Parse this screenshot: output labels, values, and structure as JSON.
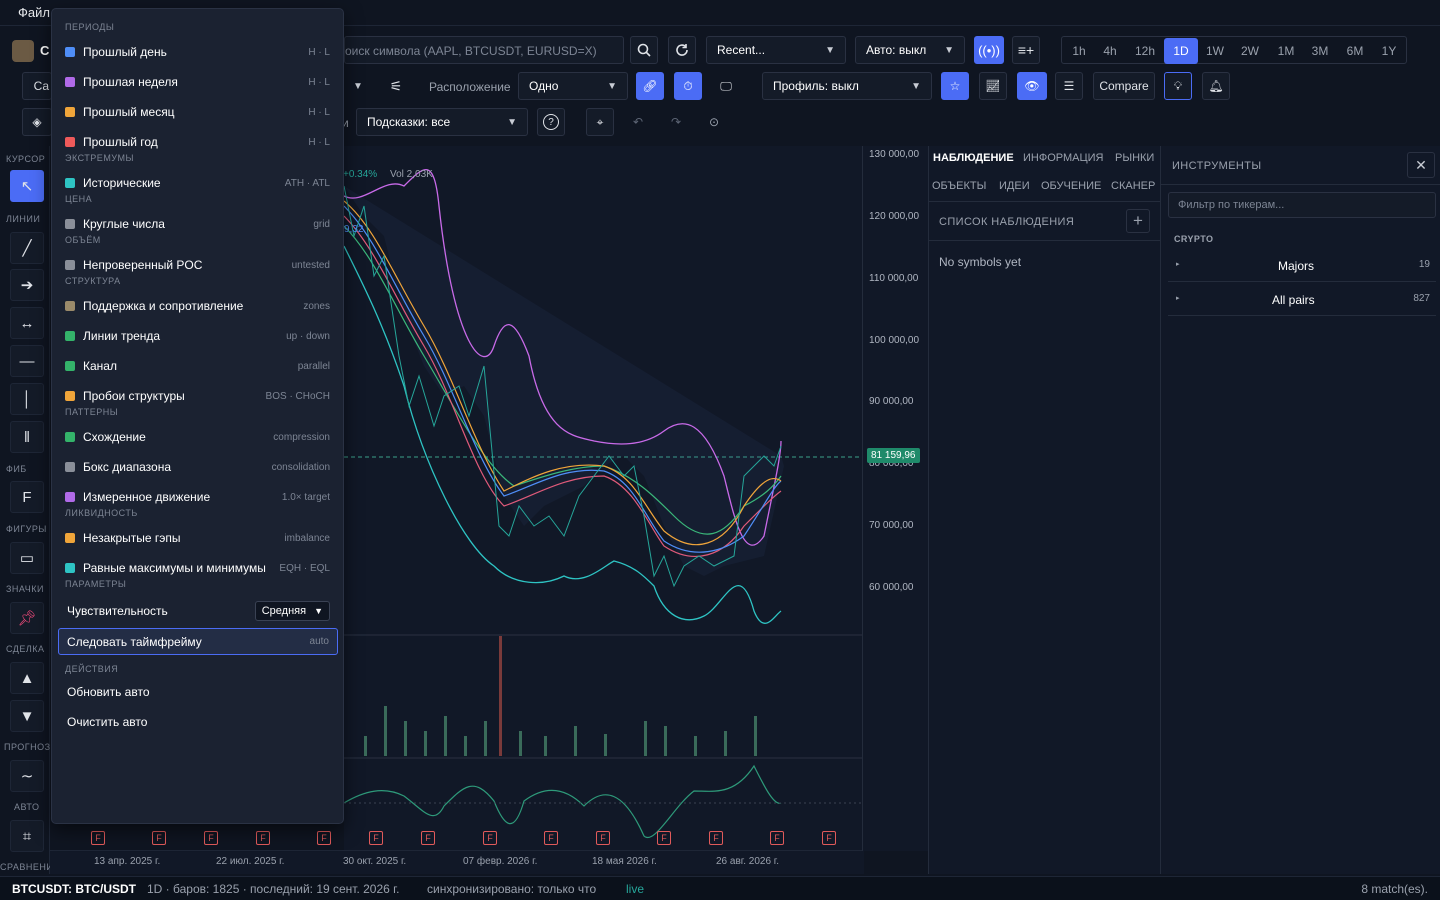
{
  "menubar": {
    "file": "Файл"
  },
  "header": {
    "logo_letter": "C",
    "search_placeholder": "оиск символа (AAPL, BTCUSDT, EURUSD=X)",
    "recent": "Recent...",
    "auto": "Авто: выкл",
    "timeframes": [
      "1h",
      "4h",
      "12h",
      "1D",
      "1W",
      "2W",
      "1M",
      "3M",
      "6M",
      "1Y"
    ],
    "active_tf": "1D"
  },
  "toolbar2": {
    "left_stub": "Ca",
    "layout_label": "Расположение",
    "layout_value": "Одно",
    "profile": "Профиль: выкл",
    "compare": "Compare"
  },
  "toolbar3": {
    "hints": "Подсказки: все",
    "stub": "и"
  },
  "leftbar": {
    "sections": [
      "КУРСОР",
      "ЛИНИИ",
      "ФИБ",
      "ФИГУРЫ",
      "ЗНАЧКИ",
      "СДЕЛКА",
      "ПРОГНОЗ",
      "АВТО",
      "СРАВНЕНИЕ"
    ],
    "fib_glyph": "F"
  },
  "chart": {
    "legend_change": "+0.34%",
    "legend_vol": "Vol 2,03K",
    "legend_stub": "9,32",
    "last_price": "81 159,96",
    "price_labels": [
      "130 000,00",
      "120 000,00",
      "110 000,00",
      "100 000,00",
      "90 000,00",
      "80 000,00",
      "70 000,00",
      "60 000,00"
    ],
    "dates": [
      "13 апр. 2025 г.",
      "22 июл. 2025 г.",
      "30 окт. 2025 г.",
      "07 февр. 2026 г.",
      "18 мая 2026 г.",
      "26 авг. 2026 г."
    ],
    "flag_glyph": "F"
  },
  "watch": {
    "tabs_row1": [
      "НАБЛЮДЕНИЕ",
      "ИНФОРМАЦИЯ",
      "РЫНКИ"
    ],
    "tabs_row2": [
      "ОБЪЕКТЫ",
      "ИДЕИ",
      "ОБУЧЕНИЕ",
      "СКАНЕР"
    ],
    "list_title": "СПИСОК НАБЛЮДЕНИЯ",
    "empty": "No symbols yet"
  },
  "instruments": {
    "title": "ИНСТРУМЕНТЫ",
    "filter_placeholder": "Фильтр по тикерам...",
    "group": "CRYPTO",
    "rows": [
      {
        "name": "Majors",
        "count": "19"
      },
      {
        "name": "All pairs",
        "count": "827"
      }
    ]
  },
  "status": {
    "symbol": "BTCUSDT: BTC/USDT",
    "info": "1D · баров: 1825 · последний: 19 сент. 2026 г.",
    "sync": "синхронизировано: только что",
    "live": "live",
    "matches": "8 match(es)."
  },
  "dropdown": {
    "h_periods": "ПЕРИОДЫ",
    "periods": [
      {
        "label": "Прошлый день",
        "hint": "H · L",
        "color": "#4f8ef7"
      },
      {
        "label": "Прошлая неделя",
        "hint": "H · L",
        "color": "#b06ae8"
      },
      {
        "label": "Прошлый месяц",
        "hint": "H · L",
        "color": "#f0a53a"
      },
      {
        "label": "Прошлый год",
        "hint": "H · L",
        "color": "#ef5a5a"
      }
    ],
    "h_extremes": "ЭКСТРЕМУМЫ",
    "extremes": [
      {
        "label": "Исторические",
        "hint": "ATH · ATL",
        "color": "#2ec4c4"
      }
    ],
    "h_price": "ЦЕНА",
    "price": [
      {
        "label": "Круглые числа",
        "hint": "grid",
        "color": "#8a8f99"
      }
    ],
    "h_volume": "ОБЪЁМ",
    "volume": [
      {
        "label": "Непроверенный POC",
        "hint": "untested",
        "color": "#8a8f99"
      }
    ],
    "h_structure": "СТРУКТУРА",
    "structure": [
      {
        "label": "Поддержка и сопротивление",
        "hint": "zones",
        "color": "#9a8a6a"
      },
      {
        "label": "Линии тренда",
        "hint": "up · down",
        "color": "#34b36a"
      },
      {
        "label": "Канал",
        "hint": "parallel",
        "color": "#34b36a"
      },
      {
        "label": "Пробои структуры",
        "hint": "BOS · CHoCH",
        "color": "#f0a53a"
      }
    ],
    "h_patterns": "ПАТТЕРНЫ",
    "patterns": [
      {
        "label": "Схождение",
        "hint": "compression",
        "color": "#34b36a"
      },
      {
        "label": "Бокс диапазона",
        "hint": "consolidation",
        "color": "#8a8f99"
      },
      {
        "label": "Измеренное движение",
        "hint": "1.0× target",
        "color": "#b06ae8"
      }
    ],
    "h_liquidity": "ЛИКВИДНОСТЬ",
    "liquidity": [
      {
        "label": "Незакрытые гэпы",
        "hint": "imbalance",
        "color": "#f0a53a"
      },
      {
        "label": "Равные максимумы и минимумы",
        "hint": "EQH · EQL",
        "color": "#2ec4c4"
      }
    ],
    "h_params": "ПАРАМЕТРЫ",
    "sensitivity_label": "Чувствительность",
    "sensitivity_value": "Средняя",
    "follow_tf": "Следовать таймфрейму",
    "follow_hint": "auto",
    "h_actions": "ДЕЙСТВИЯ",
    "refresh": "Обновить авто",
    "clear": "Очистить авто"
  }
}
